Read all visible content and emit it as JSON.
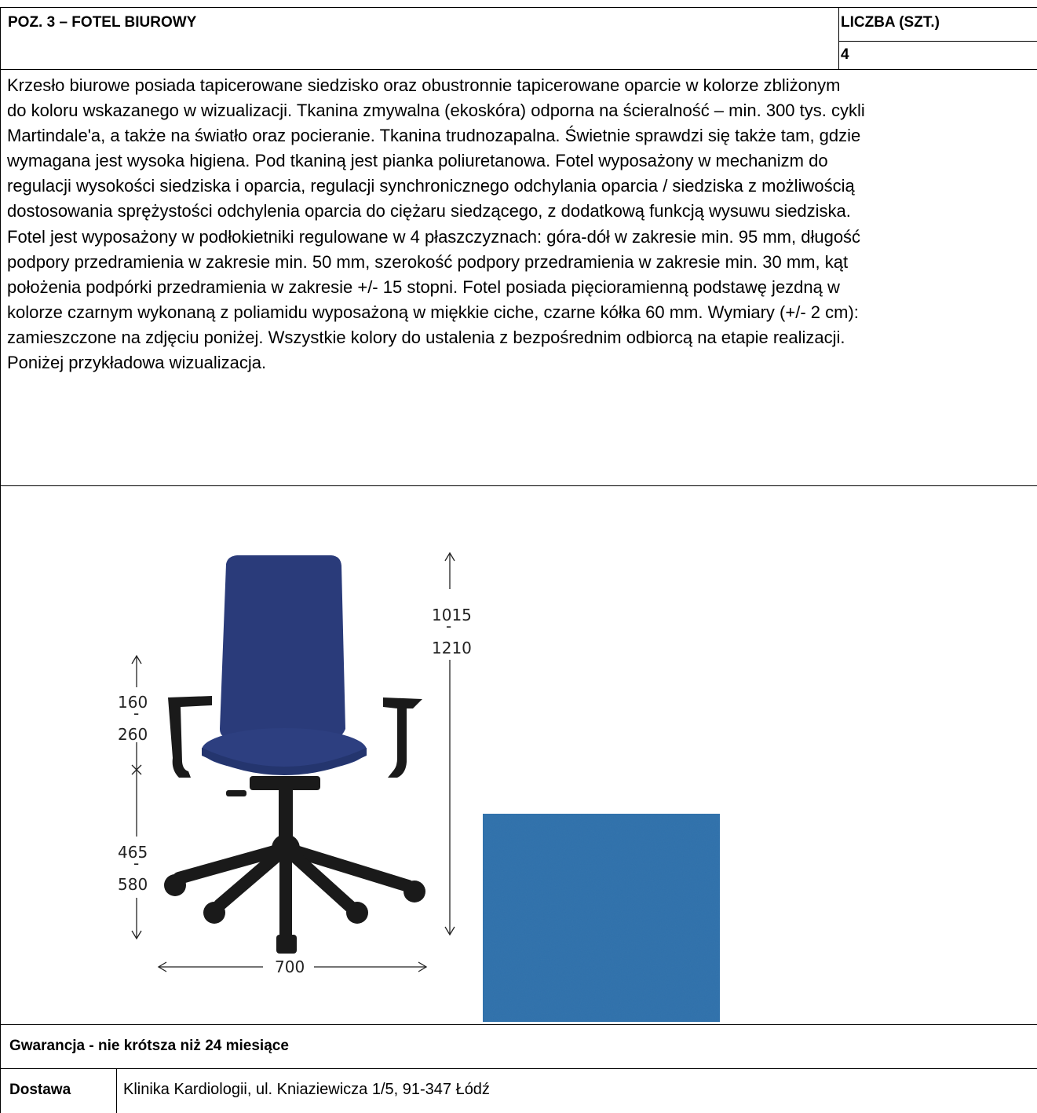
{
  "header": {
    "title": "POZ. 3 – FOTEL BIUROWY",
    "quantity_label": "LICZBA (SZT.)",
    "quantity_value": "4"
  },
  "description": [
    "Krzesło biurowe posiada tapicerowane siedzisko oraz obustronnie tapicerowane oparcie w kolorze zbliżonym",
    "do koloru wskazanego w wizualizacji. Tkanina zmywalna (ekoskóra) odporna na ścieralność – min. 300 tys. cykli",
    "Martindale'a, a także na światło oraz pocieranie. Tkanina trudnozapalna. Świetnie sprawdzi się także tam, gdzie",
    "wymagana jest wysoka higiena. Pod tkaniną jest pianka poliuretanowa. Fotel wyposażony w mechanizm do",
    "regulacji wysokości siedziska i oparcia, regulacji synchronicznego odchylania oparcia / siedziska z możliwością",
    "dostosowania sprężystości odchylenia oparcia do ciężaru siedzącego, z dodatkową funkcją wysuwu siedziska.",
    "Fotel jest wyposażony w podłokietniki regulowane w 4 płaszczyznach: góra-dół w zakresie min. 95 mm, długość",
    "podpory przedramienia w zakresie min. 50 mm, szerokość podpory przedramienia w zakresie min. 30 mm, kąt",
    "położenia podpórki przedramienia w zakresie +/- 15 stopni. Fotel posiada pięcioramienną podstawę jezdną w",
    "kolorze czarnym wykonaną z poliamidu wyposażoną w miękkie ciche, czarne kółka 60 mm. Wymiary (+/- 2 cm):",
    "zamieszczone na zdjęciu poniżej. Wszystkie kolory do ustalenia z bezpośrednim odbiorcą na etapie realizacji.",
    "Poniżej przykładowa wizualizacja."
  ],
  "dimensions": {
    "total_height_min": "1015",
    "total_height_max": "1210",
    "armrest_min": "160",
    "armrest_max": "260",
    "seat_height_min": "465",
    "seat_height_max": "580",
    "width": "700"
  },
  "colors": {
    "upholstery": "#2a3b7a",
    "fabric_sample": "#2f6fab",
    "frame": "#1a1a1a"
  },
  "warranty": "Gwarancja - nie krótsza niż 24 miesiące",
  "delivery": {
    "label": "Dostawa",
    "address": "Klinika Kardiologii, ul. Kniaziewicza 1/5, 91-347 Łódź"
  }
}
